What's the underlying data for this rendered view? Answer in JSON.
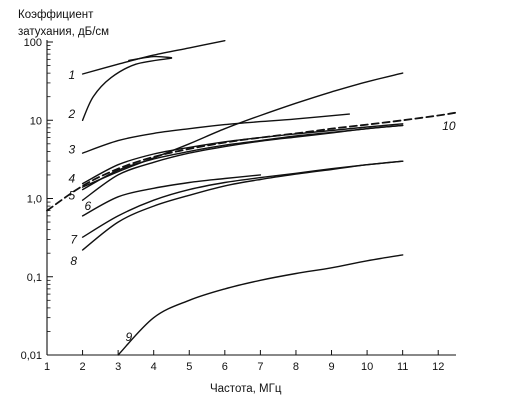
{
  "chart_data": {
    "type": "line",
    "title": "",
    "ylabel_lines": [
      "Коэффициент",
      "затухания, дБ/см"
    ],
    "xlabel": "Частота, МГц",
    "x_scale": "linear",
    "y_scale": "log",
    "xlim": [
      1,
      12.5
    ],
    "ylim": [
      0.01,
      100
    ],
    "x_ticks": [
      {
        "value": 1,
        "label": "1"
      },
      {
        "value": 2,
        "label": "2"
      },
      {
        "value": 3,
        "label": "3"
      },
      {
        "value": 4,
        "label": "4"
      },
      {
        "value": 5,
        "label": "5"
      },
      {
        "value": 6,
        "label": "6"
      },
      {
        "value": 7,
        "label": "7"
      },
      {
        "value": 8,
        "label": "8"
      },
      {
        "value": 9,
        "label": "9"
      },
      {
        "value": 10,
        "label": "10"
      },
      {
        "value": 11,
        "label": "11"
      },
      {
        "value": 12,
        "label": "12"
      }
    ],
    "y_ticks": [
      {
        "value": 100,
        "label": "100"
      },
      {
        "value": 10,
        "label": "10"
      },
      {
        "value": 1,
        "label": "1,0"
      },
      {
        "value": 0.1,
        "label": "0,1"
      },
      {
        "value": 0.01,
        "label": "0,01"
      }
    ],
    "grid": false,
    "series": [
      {
        "name": "1",
        "style": "solid",
        "points": [
          [
            2,
            39
          ],
          [
            3,
            52
          ],
          [
            4,
            68
          ],
          [
            5,
            84
          ],
          [
            6,
            104
          ]
        ]
      },
      {
        "name": "1",
        "style": "solid",
        "points": [
          [
            3.3,
            58
          ],
          [
            4,
            65
          ],
          [
            4.5,
            63
          ]
        ]
      },
      {
        "name": "2",
        "style": "solid",
        "points": [
          [
            2,
            10
          ],
          [
            2.3,
            20
          ],
          [
            2.8,
            35
          ],
          [
            3.5,
            52
          ],
          [
            4.5,
            62
          ]
        ]
      },
      {
        "name": "3",
        "style": "solid",
        "points": [
          [
            2,
            3.8
          ],
          [
            3,
            5.5
          ],
          [
            4,
            6.8
          ],
          [
            5,
            7.8
          ],
          [
            6,
            8.8
          ],
          [
            7,
            9.6
          ],
          [
            8,
            10.4
          ],
          [
            9.5,
            12
          ]
        ]
      },
      {
        "name": "4",
        "style": "solid",
        "points": [
          [
            2,
            1.4
          ],
          [
            3,
            2.2
          ],
          [
            4,
            3.3
          ],
          [
            5,
            5
          ],
          [
            6,
            7.8
          ],
          [
            7,
            11.5
          ],
          [
            8,
            16.5
          ],
          [
            9,
            23
          ],
          [
            10,
            31
          ],
          [
            11,
            40
          ]
        ]
      },
      {
        "name": "4",
        "style": "solid",
        "points": [
          [
            2,
            1.55
          ],
          [
            3,
            2.7
          ],
          [
            4,
            3.7
          ],
          [
            5,
            4.5
          ],
          [
            6,
            5.3
          ],
          [
            7,
            6
          ],
          [
            8,
            6.7
          ],
          [
            9,
            7.4
          ],
          [
            10,
            8.2
          ],
          [
            11,
            9
          ]
        ]
      },
      {
        "name": "5",
        "style": "solid",
        "points": [
          [
            2,
            1.3
          ],
          [
            3,
            2.3
          ],
          [
            4,
            3.2
          ],
          [
            5,
            4
          ],
          [
            6,
            4.8
          ],
          [
            7,
            5.5
          ],
          [
            8,
            6.3
          ],
          [
            9,
            7
          ],
          [
            10,
            7.8
          ],
          [
            11,
            8.6
          ]
        ]
      },
      {
        "name": "6",
        "style": "solid",
        "points": [
          [
            2,
            0.95
          ],
          [
            3,
            2.0
          ],
          [
            4,
            2.9
          ],
          [
            5,
            3.8
          ],
          [
            6,
            4.6
          ],
          [
            7,
            5.4
          ],
          [
            8,
            6.1
          ],
          [
            9,
            6.9
          ],
          [
            10,
            7.8
          ],
          [
            11,
            8.6
          ]
        ]
      },
      {
        "name": "7",
        "style": "solid",
        "points": [
          [
            2,
            0.6
          ],
          [
            3,
            1.05
          ],
          [
            4,
            1.35
          ],
          [
            5,
            1.6
          ],
          [
            6,
            1.8
          ],
          [
            7,
            2
          ]
        ]
      },
      {
        "name": "8",
        "style": "solid",
        "points": [
          [
            2,
            0.32
          ],
          [
            3,
            0.6
          ],
          [
            4,
            0.95
          ],
          [
            5,
            1.3
          ],
          [
            6,
            1.6
          ],
          [
            7,
            1.85
          ],
          [
            8,
            2.1
          ],
          [
            9,
            2.4
          ],
          [
            10,
            2.7
          ],
          [
            11,
            3
          ]
        ]
      },
      {
        "name": "8",
        "style": "solid",
        "points": [
          [
            2,
            0.22
          ],
          [
            3,
            0.5
          ],
          [
            4,
            0.8
          ],
          [
            5,
            1.1
          ],
          [
            6,
            1.45
          ],
          [
            7,
            1.75
          ],
          [
            8,
            2.05
          ],
          [
            9,
            2.35
          ],
          [
            10,
            2.7
          ],
          [
            11,
            3
          ]
        ]
      },
      {
        "name": "9",
        "style": "solid",
        "points": [
          [
            3,
            0.01
          ],
          [
            4,
            0.03
          ],
          [
            5,
            0.05
          ],
          [
            6,
            0.07
          ],
          [
            7,
            0.09
          ],
          [
            8,
            0.11
          ],
          [
            9,
            0.13
          ],
          [
            10,
            0.16
          ],
          [
            11,
            0.19
          ]
        ]
      },
      {
        "name": "10",
        "style": "dashed",
        "points": [
          [
            1,
            0.7
          ],
          [
            2,
            1.45
          ],
          [
            3,
            2.4
          ],
          [
            4,
            3.4
          ],
          [
            5,
            4.3
          ],
          [
            6,
            5.2
          ],
          [
            7,
            6
          ],
          [
            8,
            6.8
          ],
          [
            9,
            7.8
          ],
          [
            10,
            8.8
          ],
          [
            11,
            10
          ],
          [
            12,
            11.5
          ],
          [
            12.5,
            12.5
          ]
        ]
      }
    ],
    "labels": [
      {
        "text": "1",
        "x": 1.7,
        "y": 38
      },
      {
        "text": "2",
        "x": 1.7,
        "y": 12
      },
      {
        "text": "3",
        "x": 1.7,
        "y": 4.2
      },
      {
        "text": "4",
        "x": 1.7,
        "y": 1.8
      },
      {
        "text": "5",
        "x": 1.7,
        "y": 1.1
      },
      {
        "text": "6",
        "x": 2.15,
        "y": 0.8
      },
      {
        "text": "7",
        "x": 1.75,
        "y": 0.3
      },
      {
        "text": "8",
        "x": 1.75,
        "y": 0.16
      },
      {
        "text": "9",
        "x": 3.3,
        "y": 0.017
      },
      {
        "text": "10",
        "x": 12.3,
        "y": 8.5
      }
    ]
  }
}
